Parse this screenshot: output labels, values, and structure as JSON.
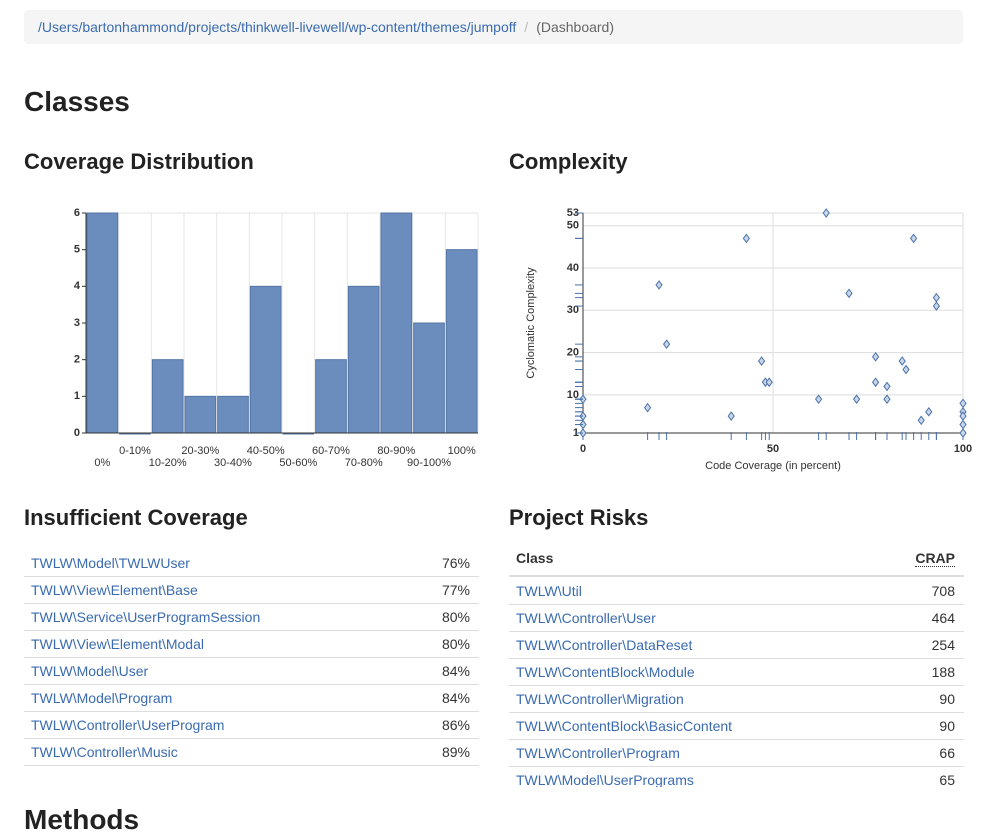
{
  "breadcrumb": {
    "path": "/Users/bartonhammond/projects/thinkwell-livewell/wp-content/themes/jumpoff",
    "separator": "/",
    "current": "(Dashboard)"
  },
  "classes_heading": "Classes",
  "methods_heading": "Methods",
  "chart_data": [
    {
      "type": "bar",
      "title": "Coverage Distribution",
      "categories": [
        "0%",
        "0-10%",
        "10-20%",
        "20-30%",
        "30-40%",
        "40-50%",
        "50-60%",
        "60-70%",
        "70-80%",
        "80-90%",
        "90-100%",
        "100%"
      ],
      "values": [
        6,
        0,
        2,
        1,
        1,
        4,
        0,
        2,
        4,
        6,
        3,
        5
      ],
      "color": "#6a8dbd",
      "ylim": [
        0,
        6
      ],
      "yticks": [
        0,
        1,
        2,
        3,
        4,
        5,
        6
      ],
      "grid": true
    },
    {
      "type": "scatter",
      "title": "Complexity",
      "x_label": "Code Coverage (in percent)",
      "y_label": "Cyclomatic Complexity",
      "x": [
        0,
        0,
        0,
        0,
        17,
        20,
        22,
        39,
        43,
        47,
        48,
        49,
        62,
        64,
        70,
        72,
        77,
        77,
        80,
        80,
        84,
        85,
        87,
        89,
        91,
        93,
        93,
        100,
        100,
        100,
        100,
        100
      ],
      "y": [
        9,
        5,
        3,
        1,
        7,
        36,
        22,
        5,
        47,
        18,
        13,
        13,
        9,
        53,
        34,
        9,
        19,
        13,
        12,
        9,
        18,
        16,
        47,
        4,
        6,
        33,
        31,
        8,
        6,
        5,
        3,
        1
      ],
      "color": "#4a72a8",
      "xlim": [
        0,
        100
      ],
      "ylim": [
        1,
        53
      ],
      "xticks": [
        0,
        50,
        100
      ],
      "yticks": [
        1,
        10,
        20,
        30,
        40,
        50,
        53
      ],
      "grid": true
    }
  ],
  "insufficient_coverage": {
    "title": "Insufficient Coverage",
    "rows": [
      [
        "TWLW\\Model\\TWLWUser",
        "76%"
      ],
      [
        "TWLW\\View\\Element\\Base",
        "77%"
      ],
      [
        "TWLW\\Service\\UserProgramSession",
        "80%"
      ],
      [
        "TWLW\\View\\Element\\Modal",
        "80%"
      ],
      [
        "TWLW\\Model\\User",
        "84%"
      ],
      [
        "TWLW\\Model\\Program",
        "84%"
      ],
      [
        "TWLW\\Controller\\UserProgram",
        "86%"
      ],
      [
        "TWLW\\Controller\\Music",
        "89%"
      ]
    ]
  },
  "project_risks": {
    "title": "Project Risks",
    "columns": [
      "Class",
      "CRAP"
    ],
    "rows": [
      [
        "TWLW\\Util",
        708
      ],
      [
        "TWLW\\Controller\\User",
        464
      ],
      [
        "TWLW\\Controller\\DataReset",
        254
      ],
      [
        "TWLW\\ContentBlock\\Module",
        188
      ],
      [
        "TWLW\\Controller\\Migration",
        90
      ],
      [
        "TWLW\\ContentBlock\\BasicContent",
        90
      ],
      [
        "TWLW\\Controller\\Program",
        66
      ],
      [
        "TWLW\\Model\\UserPrograms",
        65
      ]
    ]
  }
}
